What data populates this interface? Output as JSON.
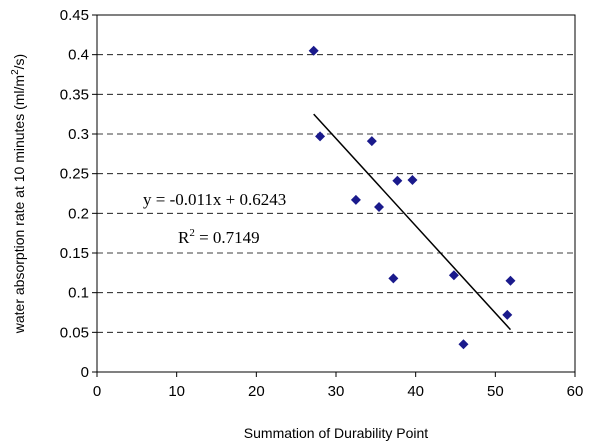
{
  "chart_data": {
    "type": "scatter",
    "xlabel": "Summation of Durability Point",
    "ylabel_main": "water absorption rate at 10 minutes (ml/m",
    "ylabel_sup": "2",
    "ylabel_tail": "/s)",
    "xlim": [
      0,
      60
    ],
    "ylim": [
      0,
      0.45
    ],
    "x_ticks": [
      "0",
      "10",
      "20",
      "30",
      "40",
      "50",
      "60"
    ],
    "y_ticks": [
      "0",
      "0.05",
      "0.1",
      "0.15",
      "0.2",
      "0.25",
      "0.3",
      "0.35",
      "0.4",
      "0.45"
    ],
    "grid": "horizontal dashed",
    "marker": "diamond",
    "marker_color": "#1a1a8c",
    "points": [
      {
        "x": 27.2,
        "y": 0.405
      },
      {
        "x": 28.0,
        "y": 0.297
      },
      {
        "x": 32.5,
        "y": 0.217
      },
      {
        "x": 34.5,
        "y": 0.291
      },
      {
        "x": 35.4,
        "y": 0.208
      },
      {
        "x": 37.2,
        "y": 0.118
      },
      {
        "x": 37.7,
        "y": 0.241
      },
      {
        "x": 39.6,
        "y": 0.242
      },
      {
        "x": 44.8,
        "y": 0.122
      },
      {
        "x": 46.0,
        "y": 0.035
      },
      {
        "x": 51.5,
        "y": 0.072
      },
      {
        "x": 51.9,
        "y": 0.115
      }
    ],
    "trendline": {
      "slope": -0.011,
      "intercept": 0.6243,
      "x_start": 27.2,
      "x_end": 51.9
    },
    "equation_text": "y = -0.011x + 0.6243",
    "r2_prefix": "R",
    "r2_sup": "2",
    "r2_tail": " = 0.7149"
  }
}
